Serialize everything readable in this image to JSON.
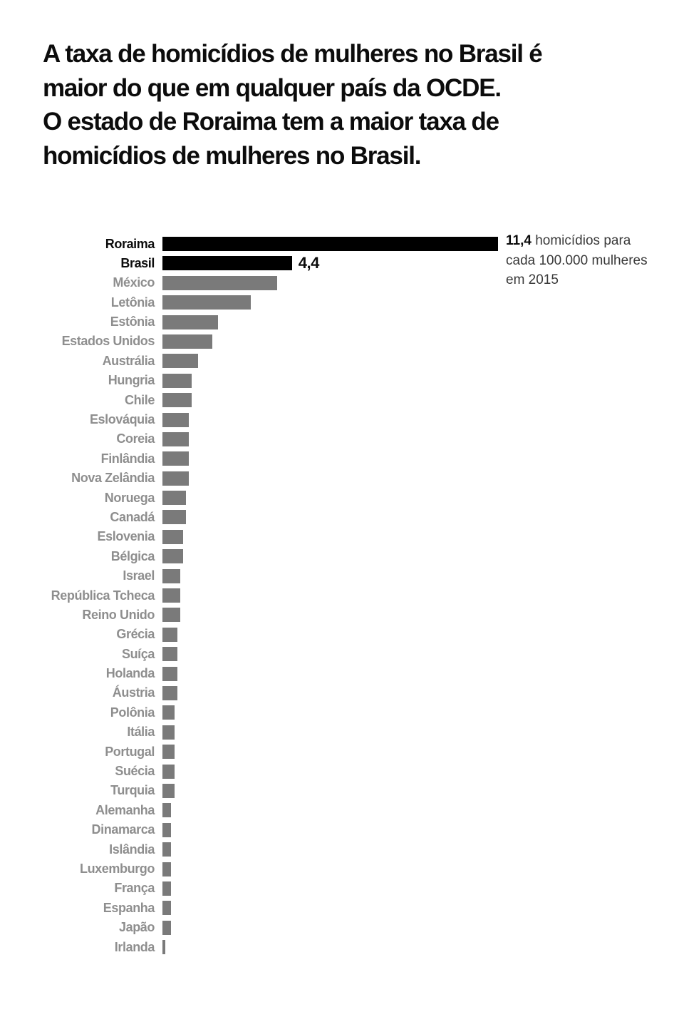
{
  "title": {
    "text": "A taxa de homicídios de mulheres no Brasil é\nmaior do que em qualquer país da OCDE.\nO estado de Roraima tem a maior taxa de\nhomicídios de mulheres no Brasil."
  },
  "chart_data": {
    "type": "bar",
    "orientation": "horizontal",
    "title": "A taxa de homicídios de mulheres no Brasil é maior do que em qualquer país da OCDE. O estado de Roraima tem a maior taxa de homicídios de mulheres no Brasil.",
    "xlabel": "homicídios para cada 100.000 mulheres em 2015",
    "ylabel": "",
    "xlim": [
      0,
      11.4
    ],
    "grid": false,
    "legend": false,
    "categories": [
      "Roraima",
      "Brasil",
      "México",
      "Letônia",
      "Estônia",
      "Estados Unidos",
      "Austrália",
      "Hungria",
      "Chile",
      "Eslováquia",
      "Coreia",
      "Finlândia",
      "Nova Zelândia",
      "Noruega",
      "Canadá",
      "Eslovenia",
      "Bélgica",
      "Israel",
      "República Tcheca",
      "Reino Unido",
      "Grécia",
      "Suíça",
      "Holanda",
      "Áustria",
      "Polônia",
      "Itália",
      "Portugal",
      "Suécia",
      "Turquia",
      "Alemanha",
      "Dinamarca",
      "Islândia",
      "Luxemburgo",
      "França",
      "Espanha",
      "Japão",
      "Irlanda"
    ],
    "values": [
      11.4,
      4.4,
      3.9,
      3.0,
      1.9,
      1.7,
      1.2,
      1.0,
      1.0,
      0.9,
      0.9,
      0.9,
      0.9,
      0.8,
      0.8,
      0.7,
      0.7,
      0.6,
      0.6,
      0.6,
      0.5,
      0.5,
      0.5,
      0.5,
      0.4,
      0.4,
      0.4,
      0.4,
      0.4,
      0.3,
      0.3,
      0.3,
      0.3,
      0.3,
      0.3,
      0.3,
      0.1
    ],
    "highlighted": [
      "Roraima",
      "Brasil"
    ],
    "value_labels": {
      "Brasil": "4,4"
    },
    "annotation": {
      "value": "11,4",
      "text": "homicídios para\ncada 100.000 mulheres\nem 2015"
    },
    "colors": {
      "highlight_bar": "#000000",
      "default_bar": "#7a7a7a",
      "highlight_label": "#0c0c0c",
      "default_label": "#8e8e8e",
      "annotation_text": "#3a3a3a",
      "background": "#ffffff"
    }
  }
}
